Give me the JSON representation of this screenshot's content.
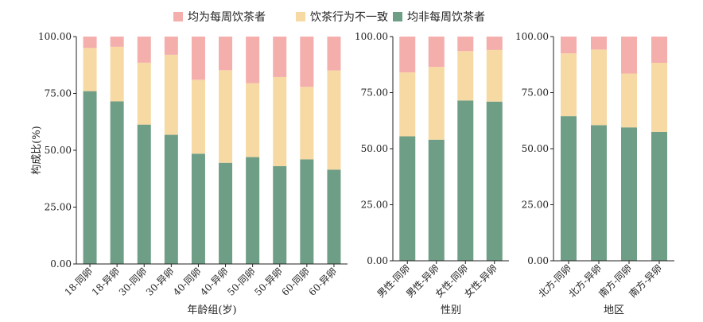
{
  "legend": {
    "items": [
      {
        "label": "均为每周饮茶者",
        "color": "#F4AEAC"
      },
      {
        "label": "饮茶行为不一致",
        "color": "#F7D9A3"
      },
      {
        "label": "均非每周饮茶者",
        "color": "#6F9E86"
      }
    ]
  },
  "chart_data": [
    {
      "type": "bar",
      "stacked": true,
      "xlabel": "年龄组(岁)",
      "ylabel": "构成比(%)",
      "ylim": [
        0,
        100
      ],
      "yticks": [
        "0.00",
        "25.00",
        "50.00",
        "75.00",
        "100.00"
      ],
      "categories": [
        "18-同卵",
        "18-异卵",
        "30-同卵",
        "30-异卵",
        "40-同卵",
        "40-异卵",
        "50-同卵",
        "50-异卵",
        "60-同卵",
        "60-异卵"
      ],
      "series": [
        {
          "name": "均非每周饮茶者",
          "values": [
            76.0,
            71.5,
            61.3,
            56.8,
            48.5,
            44.5,
            47.0,
            43.0,
            46.0,
            41.5
          ]
        },
        {
          "name": "饮茶行为不一致",
          "values": [
            19.0,
            24.0,
            27.2,
            35.2,
            32.5,
            40.7,
            32.5,
            39.2,
            31.9,
            43.6
          ]
        },
        {
          "name": "均为每周饮茶者",
          "values": [
            5.0,
            4.5,
            11.5,
            8.0,
            19.0,
            14.8,
            20.5,
            17.8,
            22.1,
            14.9
          ]
        }
      ]
    },
    {
      "type": "bar",
      "stacked": true,
      "xlabel": "性别",
      "ylabel": "",
      "ylim": [
        0,
        100
      ],
      "yticks": [
        "0.00",
        "25.00",
        "50.00",
        "75.00",
        "100.00"
      ],
      "categories": [
        "男性-同卵",
        "男性-异卵",
        "女性-同卵",
        "女性-异卵"
      ],
      "series": [
        {
          "name": "均非每周饮茶者",
          "values": [
            55.5,
            54.0,
            71.5,
            71.0
          ]
        },
        {
          "name": "饮茶行为不一致",
          "values": [
            28.5,
            32.5,
            22.0,
            23.0
          ]
        },
        {
          "name": "均为每周饮茶者",
          "values": [
            16.0,
            13.5,
            6.5,
            6.0
          ]
        }
      ]
    },
    {
      "type": "bar",
      "stacked": true,
      "xlabel": "地区",
      "ylabel": "",
      "ylim": [
        0,
        100
      ],
      "yticks": [
        "0.00",
        "25.00",
        "50.00",
        "75.00",
        "100.00"
      ],
      "categories": [
        "北方-同卵",
        "北方-异卵",
        "南方-同卵",
        "南方-异卵"
      ],
      "series": [
        {
          "name": "均非每周饮茶者",
          "values": [
            64.5,
            60.5,
            59.5,
            57.5
          ]
        },
        {
          "name": "饮茶行为不一致",
          "values": [
            28.0,
            33.7,
            24.0,
            30.8
          ]
        },
        {
          "name": "均为每周饮茶者",
          "values": [
            7.5,
            5.8,
            16.5,
            11.7
          ]
        }
      ]
    }
  ]
}
